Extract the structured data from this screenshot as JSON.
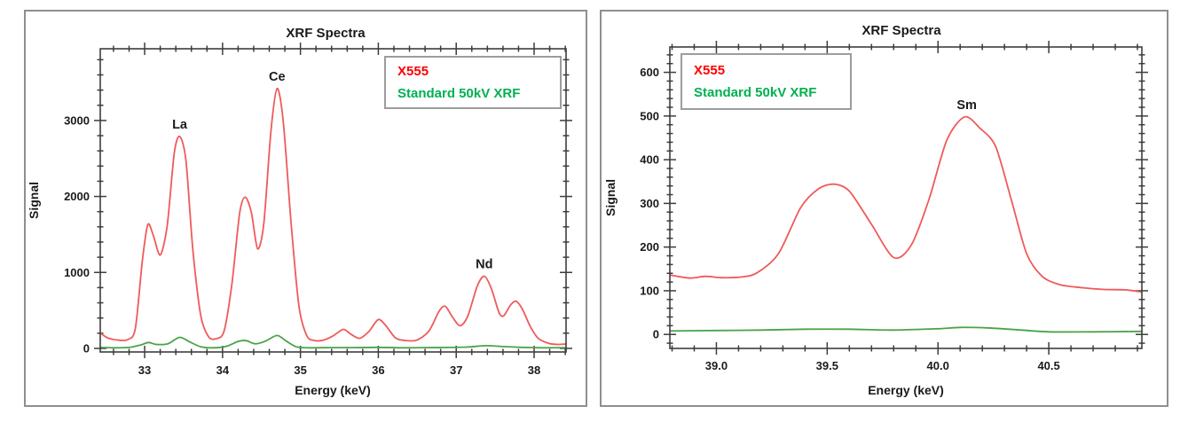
{
  "chart_data": [
    {
      "type": "line",
      "title": "XRF Spectra",
      "xlabel": "Energy (keV)",
      "ylabel": "Signal",
      "xlim": [
        32.43,
        38.41
      ],
      "ylim": [
        -47,
        3944
      ],
      "x_minor_step": 0.2,
      "y_minor_step": 200,
      "grid": false,
      "legend_position": "top-right-inside",
      "x_ticks": [
        {
          "v": 33,
          "label": "33"
        },
        {
          "v": 34,
          "label": "34"
        },
        {
          "v": 35,
          "label": "35"
        },
        {
          "v": 36,
          "label": "36"
        },
        {
          "v": 37,
          "label": "37"
        },
        {
          "v": 38,
          "label": "38"
        }
      ],
      "y_ticks": [
        {
          "v": 0,
          "label": "0"
        },
        {
          "v": 1000,
          "label": "1000"
        },
        {
          "v": 2000,
          "label": "2000"
        },
        {
          "v": 3000,
          "label": "3000"
        }
      ],
      "legend": [
        {
          "label": "X555",
          "color": "#ff0000"
        },
        {
          "label": "Standard 50kV XRF",
          "color": "#00b050"
        }
      ],
      "annotations": [
        {
          "text": "La",
          "x": 33.45,
          "y": 2790
        },
        {
          "text": "Ce",
          "x": 34.7,
          "y": 3420
        },
        {
          "text": "Nd",
          "x": 37.36,
          "y": 950
        }
      ],
      "series": [
        {
          "name": "X555",
          "color": "#ef5a5a",
          "points": [
            [
              32.43,
              205
            ],
            [
              32.52,
              140
            ],
            [
              32.65,
              110
            ],
            [
              32.78,
              115
            ],
            [
              32.88,
              260
            ],
            [
              32.97,
              1150
            ],
            [
              33.04,
              1630
            ],
            [
              33.11,
              1490
            ],
            [
              33.2,
              1230
            ],
            [
              33.29,
              1620
            ],
            [
              33.38,
              2570
            ],
            [
              33.45,
              2790
            ],
            [
              33.53,
              2470
            ],
            [
              33.62,
              1280
            ],
            [
              33.72,
              430
            ],
            [
              33.82,
              155
            ],
            [
              33.92,
              128
            ],
            [
              34.02,
              230
            ],
            [
              34.12,
              850
            ],
            [
              34.22,
              1780
            ],
            [
              34.29,
              1990
            ],
            [
              34.37,
              1790
            ],
            [
              34.45,
              1310
            ],
            [
              34.53,
              1650
            ],
            [
              34.62,
              2850
            ],
            [
              34.7,
              3420
            ],
            [
              34.78,
              2980
            ],
            [
              34.88,
              1650
            ],
            [
              34.98,
              560
            ],
            [
              35.08,
              170
            ],
            [
              35.18,
              103
            ],
            [
              35.3,
              110
            ],
            [
              35.42,
              165
            ],
            [
              35.55,
              250
            ],
            [
              35.65,
              185
            ],
            [
              35.76,
              133
            ],
            [
              35.88,
              225
            ],
            [
              36.0,
              380
            ],
            [
              36.1,
              295
            ],
            [
              36.22,
              138
            ],
            [
              36.35,
              103
            ],
            [
              36.5,
              112
            ],
            [
              36.65,
              230
            ],
            [
              36.78,
              490
            ],
            [
              36.86,
              555
            ],
            [
              36.95,
              415
            ],
            [
              37.05,
              298
            ],
            [
              37.15,
              430
            ],
            [
              37.27,
              820
            ],
            [
              37.36,
              950
            ],
            [
              37.45,
              790
            ],
            [
              37.55,
              470
            ],
            [
              37.61,
              430
            ],
            [
              37.7,
              575
            ],
            [
              37.77,
              620
            ],
            [
              37.85,
              515
            ],
            [
              37.95,
              290
            ],
            [
              38.05,
              135
            ],
            [
              38.18,
              68
            ],
            [
              38.3,
              52
            ],
            [
              38.41,
              58
            ]
          ]
        },
        {
          "name": "Standard 50kV XRF",
          "color": "#4aa34a",
          "points": [
            [
              32.43,
              12
            ],
            [
              32.6,
              8
            ],
            [
              32.8,
              12
            ],
            [
              32.95,
              45
            ],
            [
              33.05,
              78
            ],
            [
              33.15,
              52
            ],
            [
              33.3,
              62
            ],
            [
              33.45,
              145
            ],
            [
              33.58,
              85
            ],
            [
              33.72,
              22
            ],
            [
              33.88,
              8
            ],
            [
              34.05,
              28
            ],
            [
              34.2,
              92
            ],
            [
              34.3,
              102
            ],
            [
              34.42,
              60
            ],
            [
              34.55,
              95
            ],
            [
              34.7,
              170
            ],
            [
              34.82,
              95
            ],
            [
              34.95,
              20
            ],
            [
              35.1,
              8
            ],
            [
              35.4,
              10
            ],
            [
              35.7,
              10
            ],
            [
              36.0,
              14
            ],
            [
              36.3,
              8
            ],
            [
              36.6,
              10
            ],
            [
              36.9,
              12
            ],
            [
              37.15,
              18
            ],
            [
              37.38,
              36
            ],
            [
              37.6,
              24
            ],
            [
              37.85,
              14
            ],
            [
              38.1,
              8
            ],
            [
              38.41,
              9
            ]
          ]
        }
      ]
    },
    {
      "type": "line",
      "title": "XRF Spectra",
      "xlabel": "Energy (keV)",
      "ylabel": "Signal",
      "xlim": [
        38.79,
        40.92
      ],
      "ylim": [
        -32,
        658
      ],
      "x_minor_step": 0.1,
      "y_minor_step": 20,
      "grid": false,
      "legend_position": "top-left-inside",
      "x_ticks": [
        {
          "v": 39.0,
          "label": "39.0"
        },
        {
          "v": 39.5,
          "label": "39.5"
        },
        {
          "v": 40.0,
          "label": "40.0"
        },
        {
          "v": 40.5,
          "label": "40.5"
        }
      ],
      "y_ticks": [
        {
          "v": 0,
          "label": "0"
        },
        {
          "v": 100,
          "label": "100"
        },
        {
          "v": 200,
          "label": "200"
        },
        {
          "v": 300,
          "label": "300"
        },
        {
          "v": 400,
          "label": "400"
        },
        {
          "v": 500,
          "label": "500"
        },
        {
          "v": 600,
          "label": "600"
        }
      ],
      "legend": [
        {
          "label": "X555",
          "color": "#ff0000"
        },
        {
          "label": "Standard 50kV XRF",
          "color": "#00b050"
        }
      ],
      "annotations": [
        {
          "text": "Sm",
          "x": 40.13,
          "y": 498
        }
      ],
      "series": [
        {
          "name": "X555",
          "color": "#ef5a5a",
          "points": [
            [
              38.79,
              136
            ],
            [
              38.88,
              129
            ],
            [
              38.95,
              133
            ],
            [
              39.02,
              130
            ],
            [
              39.1,
              131
            ],
            [
              39.18,
              140
            ],
            [
              39.28,
              185
            ],
            [
              39.38,
              290
            ],
            [
              39.46,
              333
            ],
            [
              39.53,
              344
            ],
            [
              39.6,
              328
            ],
            [
              39.7,
              252
            ],
            [
              39.8,
              176
            ],
            [
              39.88,
              205
            ],
            [
              39.96,
              310
            ],
            [
              40.04,
              445
            ],
            [
              40.12,
              498
            ],
            [
              40.19,
              472
            ],
            [
              40.26,
              430
            ],
            [
              40.33,
              310
            ],
            [
              40.4,
              185
            ],
            [
              40.47,
              133
            ],
            [
              40.55,
              114
            ],
            [
              40.65,
              107
            ],
            [
              40.75,
              103
            ],
            [
              40.85,
              102
            ],
            [
              40.92,
              97
            ]
          ]
        },
        {
          "name": "Standard 50kV XRF",
          "color": "#4aa34a",
          "points": [
            [
              38.79,
              8
            ],
            [
              39.0,
              9
            ],
            [
              39.2,
              10
            ],
            [
              39.4,
              12
            ],
            [
              39.6,
              12
            ],
            [
              39.8,
              10
            ],
            [
              40.0,
              13
            ],
            [
              40.1,
              16
            ],
            [
              40.22,
              15
            ],
            [
              40.35,
              11
            ],
            [
              40.5,
              6
            ],
            [
              40.7,
              6
            ],
            [
              40.92,
              7
            ]
          ]
        }
      ]
    }
  ]
}
